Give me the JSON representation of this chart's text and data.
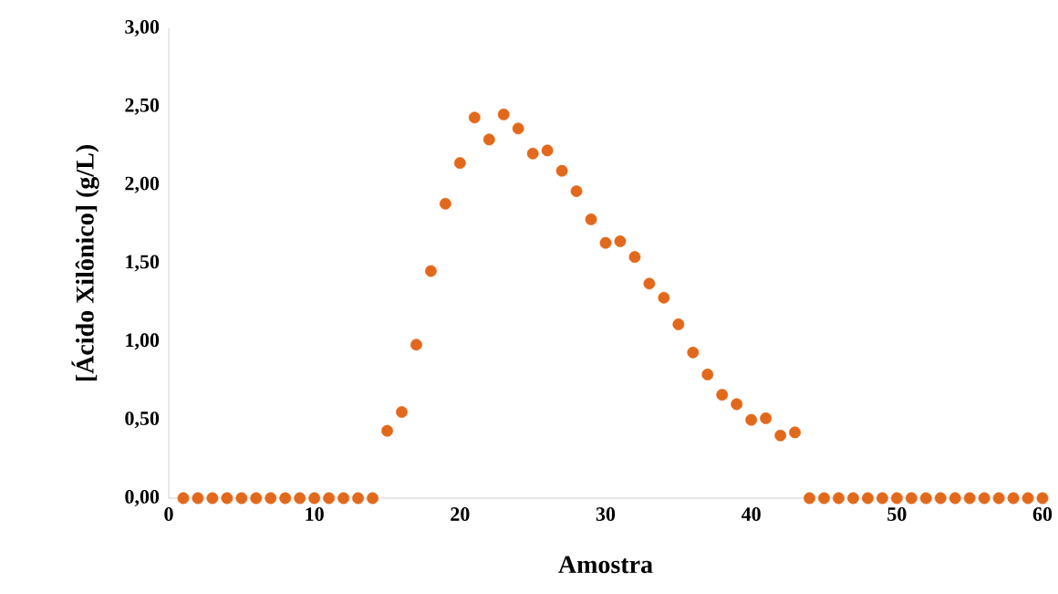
{
  "chart_data": {
    "type": "scatter",
    "xlabel": "Amostra",
    "ylabel": "[Ácido Xilônico] (g/L)",
    "x": [
      1,
      2,
      3,
      4,
      5,
      6,
      7,
      8,
      9,
      10,
      11,
      12,
      13,
      14,
      15,
      16,
      17,
      18,
      19,
      20,
      21,
      22,
      23,
      24,
      25,
      26,
      27,
      28,
      29,
      30,
      31,
      32,
      33,
      34,
      35,
      36,
      37,
      38,
      39,
      40,
      41,
      42,
      43,
      44,
      45,
      46,
      47,
      48,
      49,
      50,
      51,
      52,
      53,
      54,
      55,
      56,
      57,
      58,
      59,
      60
    ],
    "values": [
      0,
      0,
      0,
      0,
      0,
      0,
      0,
      0,
      0,
      0,
      0,
      0,
      0,
      0,
      0.43,
      0.55,
      0.98,
      1.45,
      1.88,
      2.14,
      2.43,
      2.29,
      2.45,
      2.36,
      2.2,
      2.22,
      2.09,
      1.96,
      1.78,
      1.63,
      1.64,
      1.54,
      1.37,
      1.28,
      1.11,
      0.93,
      0.79,
      0.66,
      0.6,
      0.5,
      0.51,
      0.4,
      0.42,
      0,
      0,
      0,
      0,
      0,
      0,
      0,
      0,
      0,
      0,
      0,
      0,
      0,
      0,
      0,
      0,
      0
    ],
    "color": "#e2691c",
    "marker": "circle",
    "xlim": [
      0,
      60
    ],
    "xticks": [
      0,
      10,
      20,
      30,
      40,
      50,
      60
    ],
    "ylim": [
      0,
      3
    ],
    "yticks": [
      {
        "value": 0,
        "label": "0,00"
      },
      {
        "value": 0.5,
        "label": "0,50"
      },
      {
        "value": 1,
        "label": "1,00"
      },
      {
        "value": 1.5,
        "label": "1,50"
      },
      {
        "value": 2,
        "label": "2,00"
      },
      {
        "value": 2.5,
        "label": "2,50"
      },
      {
        "value": 3,
        "label": "3,00"
      }
    ],
    "grid": false
  }
}
